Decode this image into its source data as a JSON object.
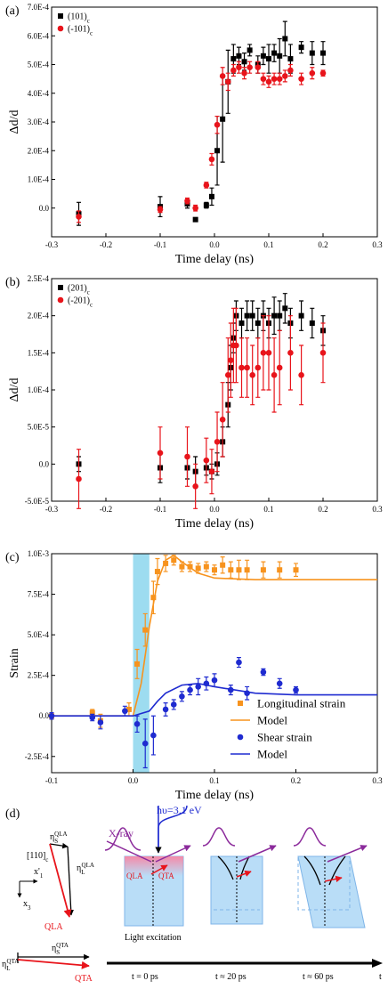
{
  "chart_data": [
    {
      "type": "scatter",
      "panel_label": "(a)",
      "x_label": "Time delay (ns)",
      "y_label": "Δd/d",
      "legend": "upper left",
      "xlim": [
        -0.3,
        0.3
      ],
      "xticks": [
        -0.3,
        -0.2,
        -0.1,
        {
          "value": 0,
          "label": "0.0"
        },
        0.1,
        0.2,
        0.3
      ],
      "ylim": [
        -0.0001,
        0.0007
      ],
      "yticks": [
        {
          "value": 0.0007,
          "label": "7.0E-4"
        },
        {
          "value": 0.0006,
          "label": "6.0E-4"
        },
        {
          "value": 0.0005,
          "label": "5.0E-4"
        },
        {
          "value": 0.0004,
          "label": "4.0E-4"
        },
        {
          "value": 0.0003,
          "label": "3.0E-4"
        },
        {
          "value": 0.0002,
          "label": "2.0E-4"
        },
        {
          "value": 0.0001,
          "label": "1.0E-4"
        },
        {
          "value": 0,
          "label": "0.0"
        }
      ],
      "series": [
        {
          "name": "(101)",
          "name_sub": "c",
          "color": "#000000",
          "marker": "square",
          "x": [
            -0.25,
            -0.1,
            -0.05,
            -0.035,
            -0.015,
            -0.005,
            0.005,
            0.015,
            0.025,
            0.035,
            0.045,
            0.055,
            0.065,
            0.08,
            0.09,
            0.1,
            0.11,
            0.12,
            0.13,
            0.14,
            0.16,
            0.18,
            0.2
          ],
          "values": [
            -2e-05,
            5e-06,
            1.5e-05,
            -4e-05,
            1e-05,
            4e-05,
            0.0002,
            0.00031,
            0.00044,
            0.00052,
            0.00053,
            0.00051,
            0.00055,
            0.0005,
            0.00053,
            0.00052,
            0.00054,
            0.00053,
            0.00059,
            0.00052,
            0.00056,
            0.00054,
            0.00054
          ],
          "errors": [
            4e-05,
            3.5e-05,
            1.5e-05,
            5e-06,
            1e-05,
            3e-05,
            0.00012,
            0.00015,
            0.00011,
            5e-05,
            3e-05,
            3e-05,
            2e-05,
            3e-05,
            3e-05,
            5e-05,
            3e-05,
            6e-05,
            6e-05,
            5e-05,
            2e-05,
            4e-05,
            4e-05
          ]
        },
        {
          "name": "(-101)",
          "name_sub": "c",
          "color": "#e8141b",
          "marker": "circle",
          "x": [
            -0.25,
            -0.1,
            -0.05,
            -0.035,
            -0.015,
            -0.005,
            0.005,
            0.015,
            0.025,
            0.035,
            0.045,
            0.055,
            0.065,
            0.08,
            0.09,
            0.1,
            0.11,
            0.12,
            0.13,
            0.14,
            0.16,
            0.18,
            0.2
          ],
          "values": [
            -3e-05,
            -5e-06,
            2.5e-05,
            0,
            8e-05,
            0.00017,
            0.00029,
            0.00046,
            0.00044,
            0.00048,
            0.00049,
            0.00047,
            0.00049,
            0.00049,
            0.00045,
            0.00044,
            0.00045,
            0.00045,
            0.00046,
            0.00048,
            0.00045,
            0.00047,
            0.00047
          ],
          "errors": [
            2e-05,
            1e-05,
            1e-05,
            1e-05,
            1e-05,
            2e-05,
            3e-05,
            3e-05,
            3e-05,
            2e-05,
            2e-05,
            2e-05,
            2e-05,
            2e-05,
            2e-05,
            2e-05,
            2e-05,
            2e-05,
            2e-05,
            2e-05,
            2e-05,
            2e-05,
            1e-05
          ]
        }
      ]
    },
    {
      "type": "scatter",
      "panel_label": "(b)",
      "x_label": "Time delay (ns)",
      "y_label": "Δd/d",
      "legend": "upper left",
      "xlim": [
        -0.3,
        0.3
      ],
      "xticks": [
        -0.3,
        -0.2,
        -0.1,
        {
          "value": 0,
          "label": "0.0"
        },
        0.1,
        0.2,
        0.3
      ],
      "ylim": [
        -5e-05,
        0.00025
      ],
      "yticks": [
        {
          "value": 0.00025,
          "label": "2.5E-4"
        },
        {
          "value": 0.0002,
          "label": "2.0E-4"
        },
        {
          "value": 0.00015,
          "label": "1.5E-4"
        },
        {
          "value": 0.0001,
          "label": "1.0E-4"
        },
        {
          "value": 5e-05,
          "label": "5.0E-5"
        },
        {
          "value": 0,
          "label": "0.0"
        },
        {
          "value": -5e-05,
          "label": "-5.0E-5"
        }
      ],
      "series": [
        {
          "name": "(201)",
          "name_sub": "c",
          "color": "#000000",
          "marker": "square",
          "x": [
            -0.25,
            -0.1,
            -0.05,
            -0.035,
            -0.015,
            -0.005,
            0.005,
            0.015,
            0.025,
            0.03,
            0.035,
            0.04,
            0.05,
            0.06,
            0.07,
            0.08,
            0.09,
            0.1,
            0.11,
            0.12,
            0.13,
            0.14,
            0.16,
            0.18,
            0.2
          ],
          "values": [
            0,
            -5e-06,
            -5e-06,
            -1e-05,
            -5e-06,
            -1e-05,
            0,
            3e-05,
            8e-05,
            0.00013,
            0.00017,
            0.0002,
            0.00019,
            0.0002,
            0.0002,
            0.00019,
            0.0002,
            0.00019,
            0.0002,
            0.0002,
            0.00021,
            0.00019,
            0.0002,
            0.00019,
            0.00018
          ],
          "errors": [
            1e-05,
            2e-05,
            1.5e-05,
            2e-05,
            1e-05,
            1e-05,
            1.5e-05,
            2e-05,
            3e-05,
            3e-05,
            2e-05,
            2e-05,
            2e-05,
            2e-05,
            2e-05,
            2e-05,
            2e-05,
            2e-05,
            2.5e-05,
            2e-05,
            2e-05,
            2e-05,
            2e-05,
            2e-05,
            2e-05
          ]
        },
        {
          "name": "(-201)",
          "name_sub": "c",
          "color": "#e8141b",
          "marker": "circle",
          "x": [
            -0.25,
            -0.1,
            -0.05,
            -0.035,
            -0.015,
            -0.005,
            0.005,
            0.015,
            0.025,
            0.03,
            0.035,
            0.04,
            0.05,
            0.06,
            0.07,
            0.08,
            0.09,
            0.1,
            0.11,
            0.12,
            0.14,
            0.16,
            0.2
          ],
          "values": [
            -2e-05,
            1.5e-05,
            1e-05,
            -3e-05,
            5e-06,
            -1e-05,
            3e-05,
            6e-05,
            0.00012,
            0.00014,
            0.00016,
            0.00016,
            0.00013,
            0.00013,
            0.00012,
            0.00013,
            0.00015,
            0.00015,
            0.00012,
            0.00013,
            0.00015,
            0.00012,
            0.00015
          ],
          "errors": [
            4e-05,
            3.5e-05,
            4e-05,
            3e-05,
            3e-05,
            3e-05,
            4e-05,
            5e-05,
            5e-05,
            5e-05,
            5e-05,
            5e-05,
            4e-05,
            4e-05,
            4e-05,
            4e-05,
            5e-05,
            5e-05,
            5e-05,
            5e-05,
            5e-05,
            4e-05,
            4e-05
          ]
        }
      ]
    },
    {
      "type": "scatter",
      "panel_label": "(c)",
      "x_label": "Time delay (ns)",
      "y_label": "Strain",
      "legend": "lower right",
      "shaded_x": [
        0,
        0.02
      ],
      "shade_color": "#9ddcf0",
      "xlim": [
        -0.1,
        0.3
      ],
      "xticks": [
        -0.1,
        {
          "value": 0,
          "label": "0.0"
        },
        0.1,
        0.2,
        0.3
      ],
      "ylim": [
        -0.00035,
        0.001
      ],
      "yticks": [
        {
          "value": 0.001,
          "label": "1.0E-3"
        },
        {
          "value": 0.00075,
          "label": "7.5E-4"
        },
        {
          "value": 0.0005,
          "label": "5.0E-4"
        },
        {
          "value": 0.00025,
          "label": "2.5E-4"
        },
        {
          "value": 0,
          "label": "0.0"
        },
        {
          "value": -0.00025,
          "label": "-2.5E-4"
        }
      ],
      "series": [
        {
          "name": "Longitudinal strain",
          "color": "#f7931e",
          "marker": "square",
          "x": [
            -0.1,
            -0.05,
            -0.04,
            -0.005,
            0.005,
            0.015,
            0.025,
            0.03,
            0.04,
            0.05,
            0.06,
            0.07,
            0.08,
            0.09,
            0.1,
            0.11,
            0.12,
            0.13,
            0.14,
            0.16,
            0.18,
            0.2
          ],
          "values": [
            0,
            2e-05,
            -3e-05,
            4e-05,
            0.00032,
            0.00053,
            0.00073,
            0.00089,
            0.00094,
            0.00096,
            0.00092,
            0.00092,
            0.00091,
            0.00092,
            0.0009,
            0.00093,
            0.0009,
            0.0009,
            0.0009,
            0.0009,
            0.0009,
            0.0009
          ],
          "errors": [
            2e-05,
            2e-05,
            4e-05,
            4e-05,
            9e-05,
            0.0001,
            0.0001,
            8e-05,
            5e-05,
            3e-05,
            3e-05,
            3e-05,
            3e-05,
            3e-05,
            3e-05,
            5e-05,
            5e-05,
            6e-05,
            6e-05,
            5e-05,
            5e-05,
            4e-05
          ]
        },
        {
          "name": "Model",
          "color": "#f7931e",
          "marker": "line",
          "x": [
            -0.1,
            0,
            0.01,
            0.02,
            0.03,
            0.04,
            0.05,
            0.06,
            0.08,
            0.1,
            0.15,
            0.2,
            0.3
          ],
          "values": [
            0,
            0,
            0.0002,
            0.00055,
            0.00083,
            0.00096,
            0.00099,
            0.00095,
            0.00088,
            0.00085,
            0.00084,
            0.00084,
            0.00084
          ]
        },
        {
          "name": "Shear strain",
          "color": "#1f2bd0",
          "marker": "circle",
          "x": [
            -0.1,
            -0.05,
            -0.04,
            -0.01,
            0.005,
            0.015,
            0.025,
            0.04,
            0.05,
            0.06,
            0.07,
            0.08,
            0.09,
            0.1,
            0.12,
            0.13,
            0.14,
            0.16,
            0.18,
            0.2
          ],
          "values": [
            0,
            -1e-05,
            -4e-05,
            3e-05,
            -5e-05,
            -0.00017,
            -0.00012,
            4e-05,
            7e-05,
            0.00012,
            0.00016,
            0.00018,
            0.0002,
            0.00022,
            0.00016,
            0.00033,
            0.00014,
            0.00027,
            0.0002,
            0.00016
          ],
          "errors": [
            2e-05,
            2e-05,
            4e-05,
            3e-05,
            5e-05,
            0.00015,
            0.00012,
            4e-05,
            3e-05,
            3e-05,
            3e-05,
            5e-05,
            4e-05,
            4e-05,
            3e-05,
            3e-05,
            4e-05,
            2e-05,
            3e-05,
            2e-05
          ]
        },
        {
          "name": "Model",
          "color": "#1f2bd0",
          "marker": "line",
          "x": [
            -0.1,
            0,
            0.02,
            0.03,
            0.04,
            0.06,
            0.08,
            0.1,
            0.15,
            0.2,
            0.3
          ],
          "values": [
            0,
            0,
            3e-05,
            9e-05,
            0.00014,
            0.00019,
            0.0002,
            0.00018,
            0.00014,
            0.00013,
            0.00013
          ]
        }
      ]
    }
  ],
  "diagram": {
    "panel_label": "(d)",
    "eta_s_qla": {
      "base": "η",
      "sub": "S",
      "sup": "QLA"
    },
    "axis_110": {
      "base": "[110]",
      "sub": "c"
    },
    "axis_x1": {
      "base": "x'",
      "sub": "1"
    },
    "eta_l_qla": {
      "base": "η",
      "sub": "L",
      "sup": "QLA"
    },
    "axis_x3": {
      "base": "x",
      "sub": "3"
    },
    "qla_vector": "QLA",
    "eta_s_qta": {
      "base": "η",
      "sub": "S",
      "sup": "QTA"
    },
    "eta_l_qta": {
      "base": "η",
      "sub": "L",
      "sup": "QTA"
    },
    "qta_vector": "QTA",
    "xray": "X-ray",
    "pump": "hυ=3.1 eV",
    "box_qla": "QLA",
    "box_qta": "QTA",
    "light_excitation": "Light excitation",
    "t0": "t = 0 ps",
    "t20": "t ≈ 20 ps",
    "t60": "t ≈ 60 ps",
    "t_axis": "t"
  }
}
